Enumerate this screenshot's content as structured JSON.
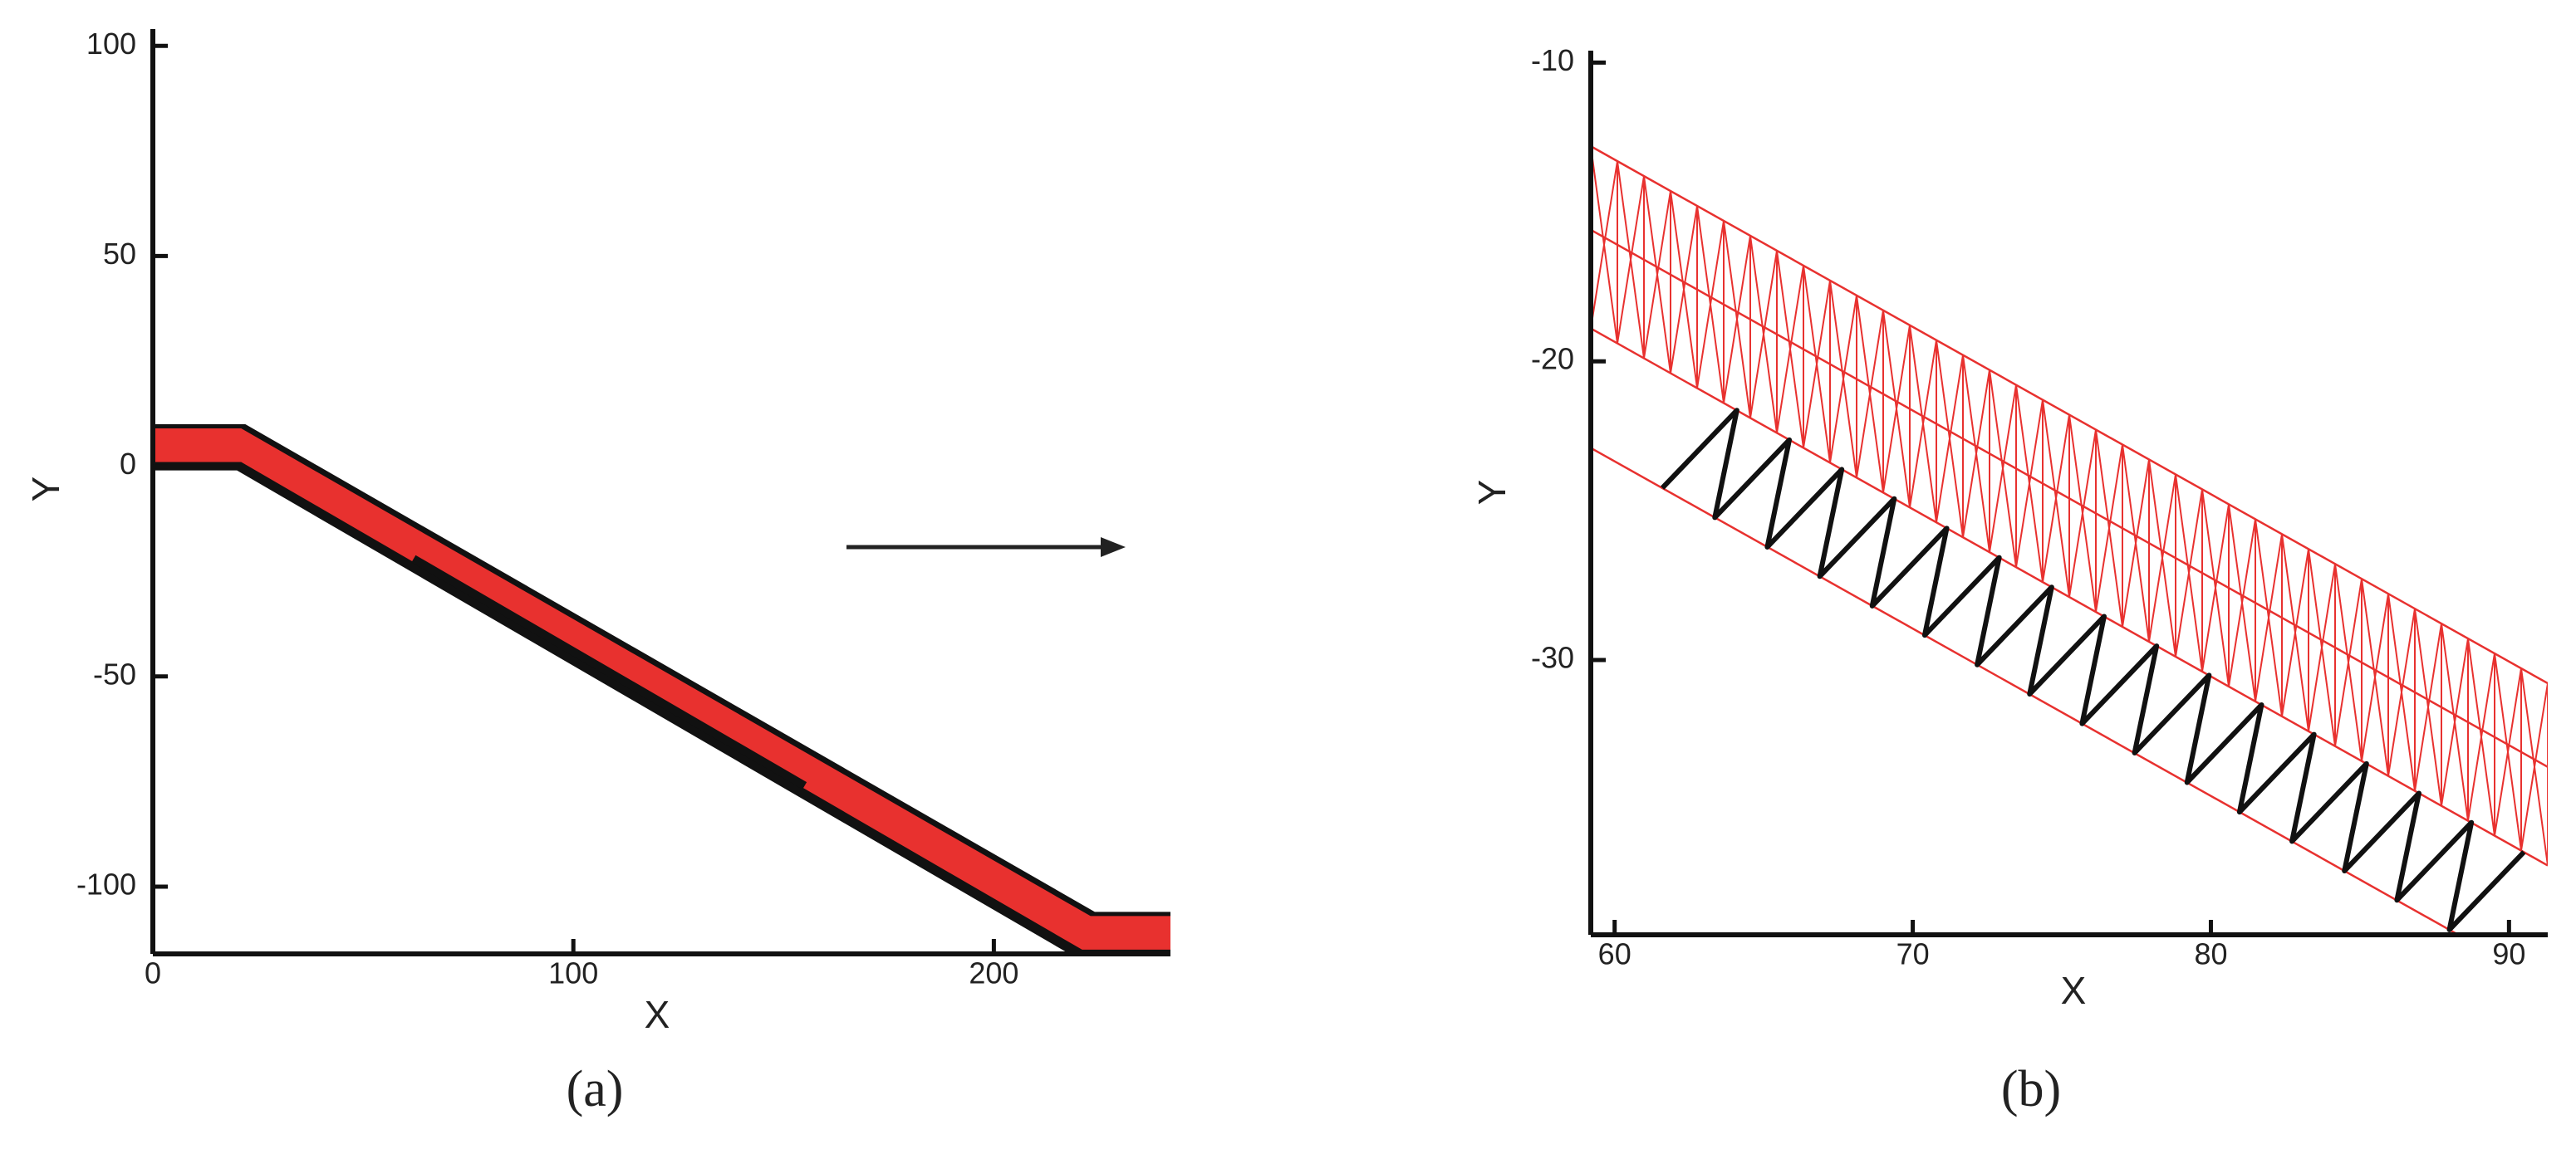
{
  "chart_data": [
    {
      "type": "mesh",
      "caption": "(a)",
      "xlabel": "X",
      "ylabel": "Y",
      "xlim": [
        0,
        242
      ],
      "ylim": [
        -116,
        104
      ],
      "xticks": [
        0,
        100,
        200
      ],
      "yticks": [
        -100,
        -50,
        0,
        50,
        100
      ],
      "outer": {
        "x": [
          0,
          22,
          224,
          242,
          242,
          218,
          20,
          0
        ],
        "y": [
          10,
          10,
          -106,
          -106,
          -116,
          -116,
          -1,
          -1
        ],
        "color": "#111111"
      },
      "inner": {
        "x": [
          0,
          21,
          223,
          242,
          242,
          221,
          21,
          0
        ],
        "y": [
          9,
          9,
          -107,
          -107,
          -115,
          -115,
          1,
          1
        ],
        "color": "#e8312f"
      },
      "streak": {
        "x": [
          62,
          155
        ],
        "y": [
          -22,
          -76
        ],
        "color": "#111111"
      }
    },
    {
      "type": "mesh",
      "caption": "(b)",
      "xlabel": "X",
      "ylabel": "Y",
      "xlim": [
        59.2,
        91.3
      ],
      "ylim": [
        -39.2,
        -9.6
      ],
      "xticks": [
        60,
        70,
        80,
        90
      ],
      "yticks": [
        -10,
        -20,
        -30
      ],
      "edges": [
        {
          "x": [
            59.2,
            91.3
          ],
          "y": [
            -12.8,
            -30.78
          ]
        },
        {
          "x": [
            59.2,
            91.3
          ],
          "y": [
            -15.6,
            -33.58
          ]
        },
        {
          "x": [
            59.2,
            91.3
          ],
          "y": [
            -18.9,
            -36.88
          ]
        },
        {
          "x": [
            59.2,
            91.3
          ],
          "y": [
            -22.9,
            -40.88
          ]
        }
      ],
      "edge_color": "#e8312f",
      "zigzag": {
        "x": [
          61.6,
          64.1,
          63.36,
          65.86,
          65.12,
          67.62,
          66.88,
          69.38,
          68.64,
          71.14,
          70.4,
          72.9,
          72.16,
          74.66,
          73.92,
          76.42,
          75.68,
          78.18,
          77.44,
          79.94,
          79.2,
          81.7,
          80.96,
          83.46,
          82.72,
          85.22,
          84.48,
          86.98,
          86.24,
          88.74,
          88.0,
          90.5
        ],
        "y": [
          -24.24,
          -21.64,
          -25.23,
          -22.63,
          -26.22,
          -23.62,
          -27.2,
          -24.6,
          -28.19,
          -25.59,
          -29.17,
          -26.57,
          -30.16,
          -27.56,
          -31.14,
          -28.54,
          -32.13,
          -29.53,
          -33.11,
          -30.51,
          -34.1,
          -31.5,
          -35.09,
          -32.49,
          -36.07,
          -33.47,
          -37.06,
          -34.46,
          -38.04,
          -35.44,
          -39.03,
          -36.43
        ],
        "color": "#111111"
      }
    }
  ]
}
